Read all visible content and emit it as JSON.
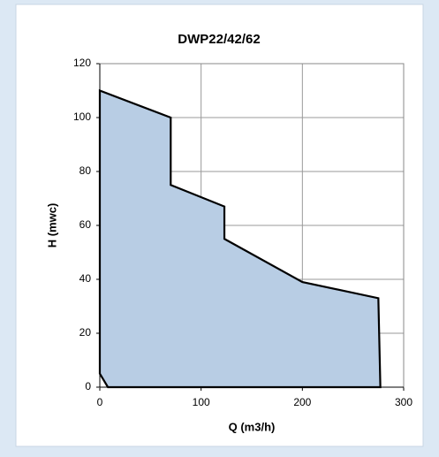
{
  "chart_data": {
    "type": "area",
    "title": "DWP22/42/62",
    "x_label": "Q (m3/h)",
    "y_label": "H (mwc)",
    "series": [
      {
        "color": "#b8cde4",
        "x": [
          8,
          0,
          0,
          70,
          70,
          123,
          123,
          200,
          275,
          277
        ],
        "values": [
          0,
          5,
          110,
          100,
          75,
          67,
          55,
          39,
          33,
          0
        ]
      }
    ],
    "xlim": [
      0,
      300
    ],
    "xticks": [
      0,
      100,
      200,
      300
    ],
    "ylim": [
      0,
      120
    ],
    "yticks": [
      0,
      20,
      40,
      60,
      80,
      100,
      120
    ],
    "grid": true
  }
}
